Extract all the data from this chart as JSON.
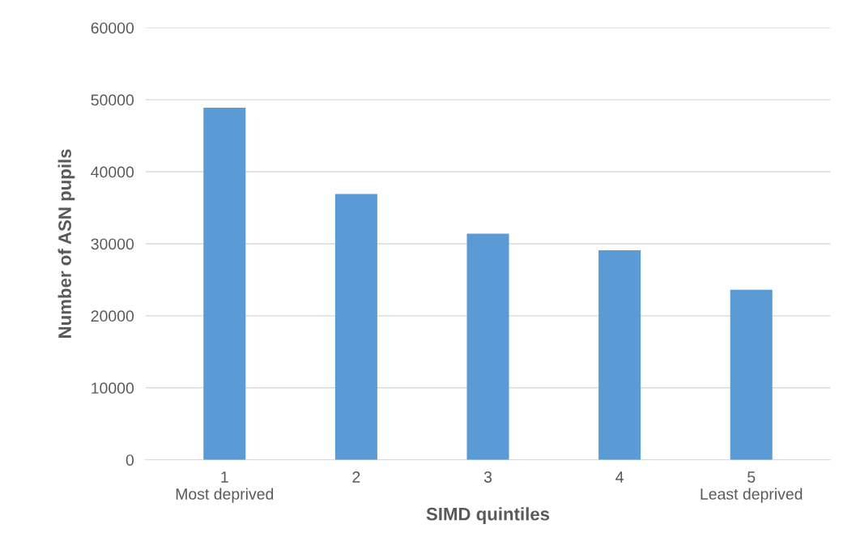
{
  "chart_data": {
    "type": "bar",
    "categories": [
      "1\nMost deprived",
      "2",
      "3",
      "4",
      "5\nLeast deprived"
    ],
    "values": [
      48900,
      36900,
      31400,
      29100,
      23600
    ],
    "color": "#5b9bd5",
    "xlabel": "SIMD quintiles",
    "ylabel": "Number of ASN pupils",
    "ylim": [
      0,
      60000
    ],
    "yticks": [
      0,
      10000,
      20000,
      30000,
      40000,
      50000,
      60000
    ],
    "grid": "y",
    "legend": false
  }
}
